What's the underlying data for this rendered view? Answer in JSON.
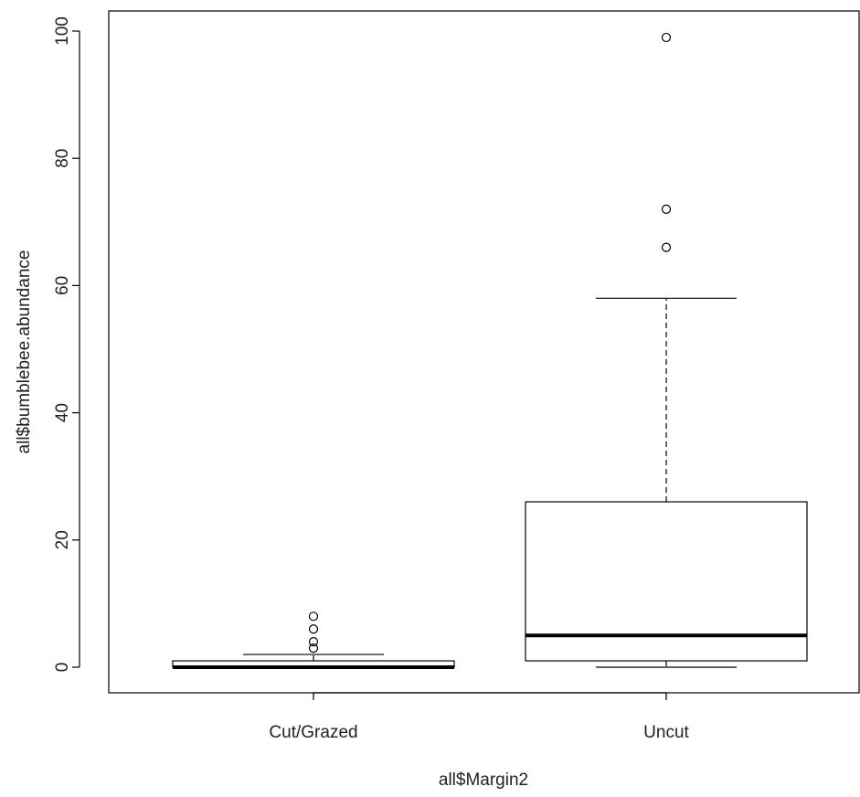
{
  "chart_data": {
    "type": "boxplot",
    "title": "",
    "xlabel": "all$Margin2",
    "ylabel": "all$bumblebee.abundance",
    "ylim": [
      -4,
      103
    ],
    "yticks": [
      0,
      20,
      40,
      60,
      80,
      100
    ],
    "ytick_labels": [
      "0",
      "20",
      "40",
      "60",
      "80",
      "100"
    ],
    "grid": false,
    "categories": [
      "Cut/Grazed",
      "Uncut"
    ],
    "boxes": [
      {
        "name": "Cut/Grazed",
        "whisker_low": 0,
        "q1": 0,
        "median": 0,
        "q3": 1,
        "whisker_high": 2,
        "outliers": [
          3,
          4,
          6,
          8
        ]
      },
      {
        "name": "Uncut",
        "whisker_low": 0,
        "q1": 1,
        "median": 5,
        "q3": 26,
        "whisker_high": 58,
        "outliers": [
          66,
          72,
          99
        ]
      }
    ]
  }
}
